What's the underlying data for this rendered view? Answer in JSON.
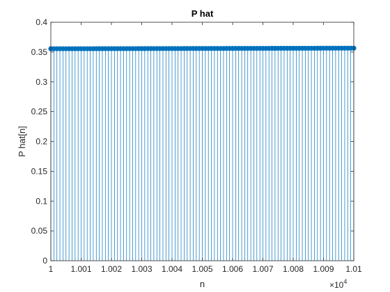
{
  "chart_data": {
    "type": "stem",
    "title": "P hat",
    "xlabel": "n",
    "ylabel": "P hat[n]",
    "x_range": [
      10000,
      10100
    ],
    "xlim": [
      10000,
      10100
    ],
    "ylim": [
      0,
      0.4
    ],
    "x_exponent": {
      "base": "×10",
      "power": "4"
    },
    "x_ticks": [
      10000,
      10010,
      10020,
      10030,
      10040,
      10050,
      10060,
      10070,
      10080,
      10090,
      10100
    ],
    "x_tick_labels": [
      "1",
      "1.001",
      "1.002",
      "1.003",
      "1.004",
      "1.005",
      "1.006",
      "1.007",
      "1.008",
      "1.009",
      "1.01"
    ],
    "y_ticks": [
      0,
      0.05,
      0.1,
      0.15,
      0.2,
      0.25,
      0.3,
      0.35,
      0.4
    ],
    "y_tick_labels": [
      "0",
      "0.05",
      "0.1",
      "0.15",
      "0.2",
      "0.25",
      "0.3",
      "0.35",
      "0.4"
    ],
    "value_start": 0.3555,
    "value_end": 0.3565,
    "grid": false,
    "box": true,
    "marker": "filled-circle",
    "colors": {
      "stem": "#0072BD",
      "axes": "#262626",
      "background": "#FFFFFF"
    }
  }
}
